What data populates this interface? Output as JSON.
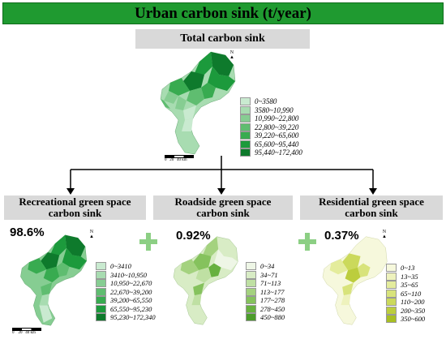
{
  "title": "Urban carbon sink (t/year)",
  "total": {
    "header": "Total carbon sink",
    "legend": [
      "0~3580",
      "3580~10,990",
      "10,990~22,800",
      "22,800~39,220",
      "39,220~65,600",
      "65,600~95,440",
      "95,440~172,400"
    ],
    "colors": [
      "#c9ead0",
      "#a8dcb1",
      "#86cd92",
      "#5fbd70",
      "#38ab50",
      "#1c9a3c",
      "#0e7a2c"
    ]
  },
  "recreational": {
    "header_line1": "Recreational green space",
    "header_line2": "carbon sink",
    "percent": "98.6%",
    "legend": [
      "0~3410",
      "3410~10,950",
      "10,950~22,670",
      "22,670~39,200",
      "39,200~65,550",
      "65,550~95,230",
      "95,230~172,340"
    ],
    "colors": [
      "#c9ead0",
      "#a8dcb1",
      "#86cd92",
      "#5fbd70",
      "#38ab50",
      "#1c9a3c",
      "#0e7a2c"
    ]
  },
  "roadside": {
    "header_line1": "Roadside green space",
    "header_line2": "carbon sink",
    "percent": "0.92%",
    "legend": [
      "0~34",
      "34~71",
      "71~113",
      "113~177",
      "177~278",
      "278~450",
      "450~880"
    ],
    "colors": [
      "#eef6e6",
      "#d8ecc5",
      "#bfe0a3",
      "#a4d27f",
      "#85c25d",
      "#67b13f",
      "#4c9c2b"
    ]
  },
  "residential": {
    "header_line1": "Residential green space",
    "header_line2": "carbon sink",
    "percent": "0.37%",
    "legend": [
      "0~13",
      "13~35",
      "35~65",
      "65~110",
      "110~200",
      "200~350",
      "350~600"
    ],
    "colors": [
      "#f6f8dc",
      "#eef2bd",
      "#e4ec9c",
      "#d8e37b",
      "#cbd95b",
      "#bccd3d",
      "#a8bf22"
    ]
  },
  "north_label": "N",
  "scale_ticks": [
    "0",
    "20",
    "40"
  ],
  "scale_unit": "km",
  "accent_green": "#1f9a30",
  "plus_color": "#8ccf84"
}
